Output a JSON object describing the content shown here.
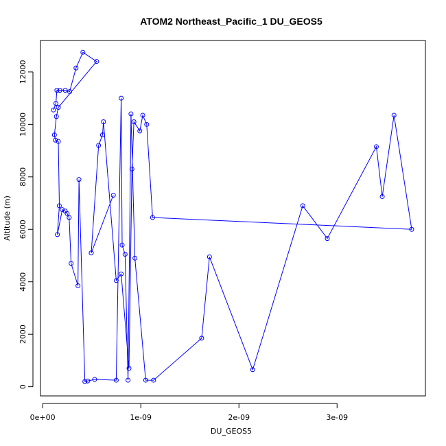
{
  "chart_data": {
    "type": "line",
    "title": "ATOM2 Northeast_Pacific_1 DU_GEOS5",
    "xlabel": "DU_GEOS5",
    "ylabel": "Altitude (m)",
    "xlim": [
      -2.2e-11,
      3.9e-09
    ],
    "ylim": [
      -350,
      13200
    ],
    "x_ticks": [
      0,
      1e-09,
      2e-09,
      3e-09
    ],
    "x_tick_labels": [
      "0e+00",
      "1e-09",
      "2e-09",
      "3e-09"
    ],
    "y_ticks": [
      0,
      2000,
      4000,
      6000,
      8000,
      10000,
      12000
    ],
    "y_tick_labels": [
      "0",
      "2000",
      "4000",
      "6000",
      "8000",
      "10000",
      "12000"
    ],
    "grid": false,
    "series_color": "#0000ff",
    "marker": "open-circle",
    "x": [
      1.1e-10,
      1.35e-10,
      1.45e-10,
      1.75e-10,
      2.3e-10,
      2.75e-10,
      3.4e-10,
      4.1e-10,
      5.5e-10,
      1.6e-10,
      1.4e-10,
      1.2e-10,
      1.3e-10,
      1.6e-10,
      1.7e-10,
      1.5e-10,
      2e-10,
      2.3e-10,
      2.5e-10,
      2.7e-10,
      2.9e-10,
      3.6e-10,
      3.7e-10,
      4.3e-10,
      4.6e-10,
      5.3e-10,
      7.5e-10,
      8e-10,
      8.1e-10,
      8.4e-10,
      8.7e-10,
      9e-10,
      9.4e-10,
      1.05e-09,
      1.13e-09,
      1.62e-09,
      1.7e-09,
      2.14e-09,
      2.65e-09,
      2.9e-09,
      3.4e-09,
      3.46e-09,
      3.58e-09,
      3.76e-09,
      1.12e-09,
      1.06e-09,
      1.02e-09,
      9.9e-10,
      9.3e-10,
      9.1e-10,
      8.8e-10,
      8e-10,
      7.5e-10,
      6.2e-10,
      6.1e-10,
      5.7e-10,
      4.95e-10,
      7.2e-10
    ],
    "y": [
      10550,
      10800,
      11300,
      11300,
      11300,
      11250,
      12150,
      12750,
      12400,
      10650,
      10300,
      9600,
      9400,
      9350,
      6900,
      5800,
      6750,
      6700,
      6600,
      6450,
      4700,
      3850,
      7900,
      200,
      220,
      280,
      250,
      11000,
      5400,
      5050,
      250,
      10400,
      4900,
      250,
      250,
      1850,
      4950,
      650,
      6900,
      5650,
      9150,
      7250,
      10350,
      6000,
      6450,
      10000,
      10350,
      9750,
      10100,
      8300,
      700,
      4300,
      4050,
      10100,
      9600,
      9200,
      5100,
      7300
    ]
  }
}
